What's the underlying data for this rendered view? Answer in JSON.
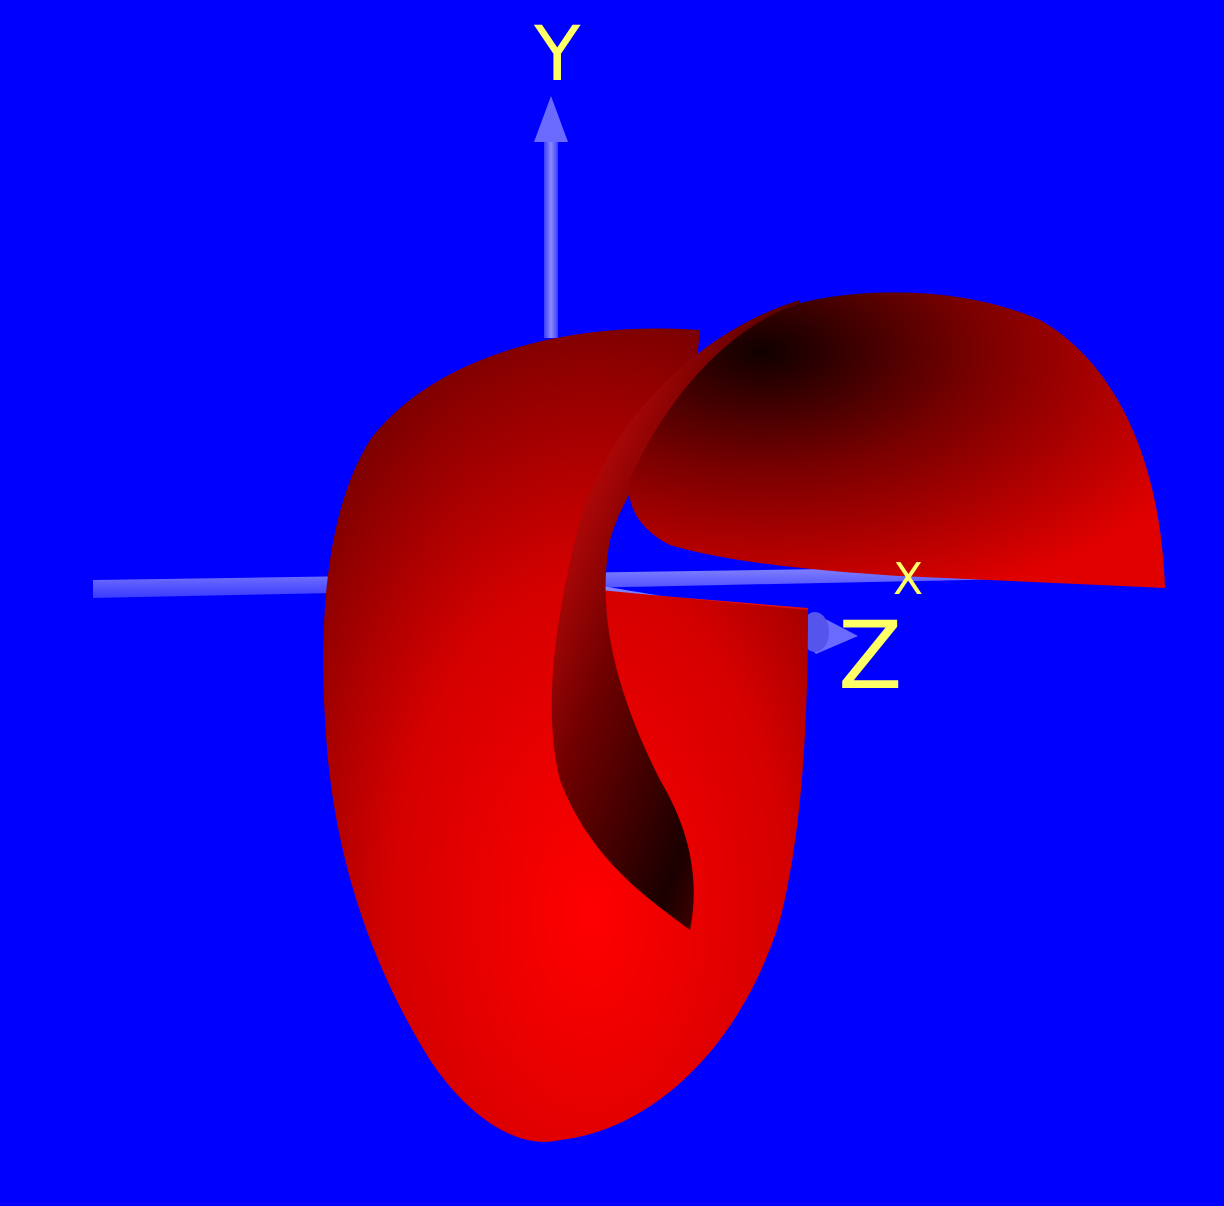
{
  "scene": {
    "background_color": "#0000ff",
    "surface_color": "#ff0000",
    "axis_color": "#5a5aff",
    "label_color": "#ffff66"
  },
  "axes": {
    "x_label": "X",
    "y_label": "Y",
    "z_label": "Z"
  }
}
